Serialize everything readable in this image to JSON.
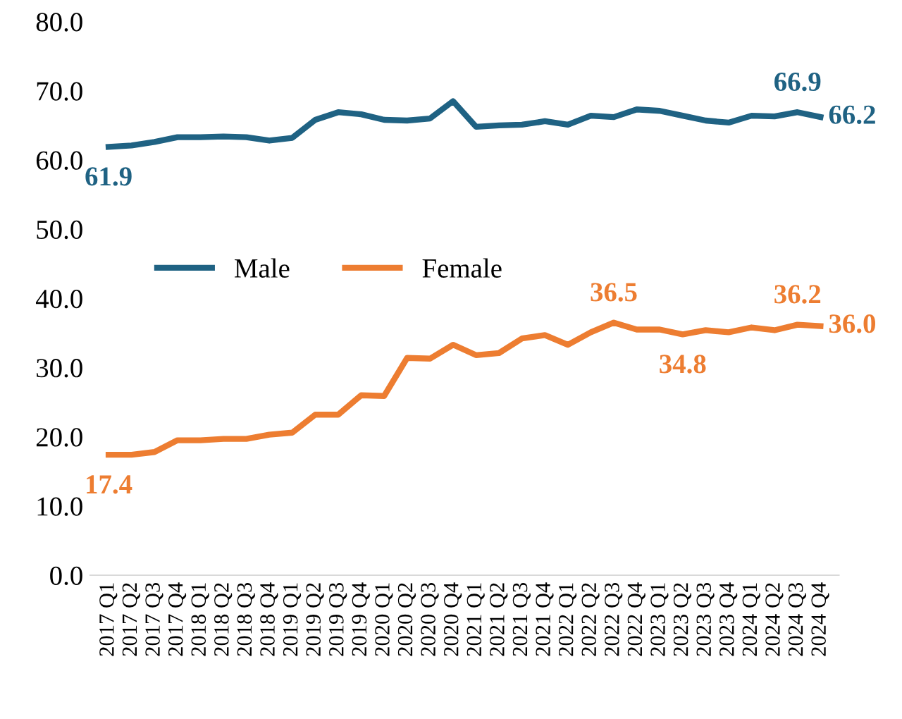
{
  "chart_data": {
    "type": "line",
    "categories": [
      "2017 Q1",
      "2017 Q2",
      "2017 Q3",
      "2017 Q4",
      "2018 Q1",
      "2018 Q2",
      "2018 Q3",
      "2018 Q4",
      "2019 Q1",
      "2019 Q2",
      "2019 Q3",
      "2019 Q4",
      "2020 Q1",
      "2020 Q2",
      "2020 Q3",
      "2020 Q4",
      "2021 Q1",
      "2021 Q2",
      "2021 Q3",
      "2021 Q4",
      "2022 Q1",
      "2022 Q2",
      "2022 Q3",
      "2022 Q4",
      "2023 Q1",
      "2023 Q2",
      "2023 Q3",
      "2023 Q4",
      "2024 Q1",
      "2024 Q2",
      "2024 Q3",
      "2024 Q4"
    ],
    "series": [
      {
        "name": "Male",
        "color": "#1f6283",
        "values": [
          61.9,
          62.1,
          62.6,
          63.3,
          63.3,
          63.4,
          63.3,
          62.8,
          63.2,
          65.8,
          66.9,
          66.6,
          65.8,
          65.7,
          66.0,
          68.5,
          64.8,
          65.0,
          65.1,
          65.6,
          65.1,
          66.4,
          66.2,
          67.3,
          67.1,
          66.4,
          65.7,
          65.4,
          66.4,
          66.3,
          66.9,
          66.2
        ],
        "value_labels": [
          "61.9",
          null,
          null,
          null,
          null,
          null,
          null,
          null,
          null,
          null,
          null,
          null,
          null,
          null,
          null,
          null,
          null,
          null,
          null,
          null,
          null,
          null,
          null,
          null,
          null,
          null,
          null,
          null,
          null,
          null,
          "66.9",
          "66.2"
        ]
      },
      {
        "name": "Female",
        "color": "#ed7d31",
        "values": [
          17.4,
          17.4,
          17.8,
          19.5,
          19.5,
          19.7,
          19.7,
          20.3,
          20.6,
          23.2,
          23.2,
          26.0,
          25.9,
          31.4,
          31.3,
          33.3,
          31.8,
          32.1,
          34.2,
          34.7,
          33.3,
          35.1,
          36.5,
          35.5,
          35.5,
          34.8,
          35.4,
          35.1,
          35.8,
          35.4,
          36.2,
          36.0
        ],
        "value_labels": [
          "17.4",
          null,
          null,
          null,
          null,
          null,
          null,
          null,
          null,
          null,
          null,
          null,
          null,
          null,
          null,
          null,
          null,
          null,
          null,
          null,
          null,
          null,
          "36.5",
          null,
          null,
          "34.8",
          null,
          null,
          null,
          null,
          "36.2",
          "36.0"
        ]
      }
    ],
    "ylim": [
      0,
      80
    ],
    "yticks": [
      {
        "value": 0,
        "label": "0.0"
      },
      {
        "value": 10,
        "label": "10.0"
      },
      {
        "value": 20,
        "label": "20.0"
      },
      {
        "value": 30,
        "label": "30.0"
      },
      {
        "value": 40,
        "label": "40.0"
      },
      {
        "value": 50,
        "label": "50.0"
      },
      {
        "value": 60,
        "label": "60.0"
      },
      {
        "value": 70,
        "label": "70.0"
      },
      {
        "value": 80,
        "label": "80.0"
      }
    ],
    "grid": false,
    "legend": "center",
    "marker": "none",
    "line_style": "solid"
  }
}
